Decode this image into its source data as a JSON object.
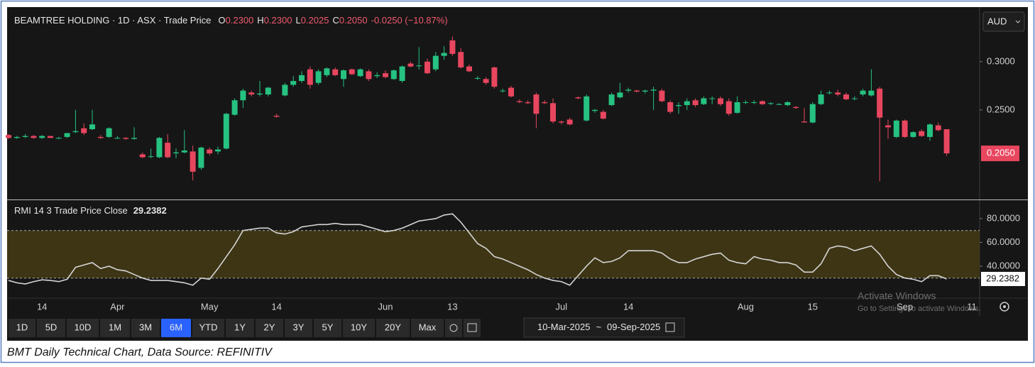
{
  "chart_data": [
    {
      "type": "candlestick",
      "legend": {
        "name": "BEAMTREE HOLDING · 1D · ASX · Trade Price",
        "open_label": "O",
        "open": "0.2300",
        "high_label": "H",
        "high": "0.2300",
        "low_label": "L",
        "low": "0.2025",
        "close_label": "C",
        "close": "0.2050",
        "change": "-0.0250 (−10.87%)"
      },
      "last_label": "0.2050",
      "up_color": "#26c281",
      "down_color": "#e8465f",
      "ylim": [
        0.158,
        0.355
      ],
      "yticks": [
        {
          "value": 0.25,
          "label": "0.2500"
        },
        {
          "value": 0.3,
          "label": "0.3000"
        }
      ],
      "categories": [
        null,
        null,
        null,
        null,
        "14",
        null,
        null,
        null,
        null,
        null,
        null,
        null,
        null,
        "Apr",
        null,
        null,
        null,
        null,
        null,
        null,
        null,
        null,
        null,
        null,
        "May",
        null,
        null,
        null,
        null,
        null,
        null,
        null,
        "14",
        null,
        null,
        null,
        null,
        null,
        null,
        null,
        null,
        null,
        null,
        null,
        null,
        "Jun",
        null,
        null,
        null,
        null,
        null,
        null,
        null,
        "13",
        null,
        null,
        null,
        null,
        null,
        null,
        null,
        null,
        null,
        null,
        null,
        null,
        "Jul",
        null,
        null,
        null,
        null,
        null,
        null,
        null,
        "14",
        null,
        null,
        null,
        null,
        null,
        null,
        null,
        null,
        null,
        null,
        null,
        null,
        null,
        "Aug",
        null,
        null,
        null,
        null,
        null,
        null,
        null,
        "15",
        null,
        null,
        null,
        null,
        null,
        null,
        null,
        null,
        null,
        null,
        "Sep",
        null,
        null,
        null,
        null,
        null,
        null,
        null,
        "11"
      ],
      "ohlc": [
        [
          0.224,
          0.225,
          0.22,
          0.221
        ],
        [
          0.221,
          0.223,
          0.22,
          0.222
        ],
        [
          0.222,
          0.225,
          0.221,
          0.223
        ],
        [
          0.223,
          0.224,
          0.22,
          0.221
        ],
        [
          0.221,
          0.224,
          0.22,
          0.223
        ],
        [
          0.223,
          0.223,
          0.221,
          0.221
        ],
        [
          0.221,
          0.222,
          0.22,
          0.221
        ],
        [
          0.222,
          0.226,
          0.221,
          0.226
        ],
        [
          0.227,
          0.25,
          0.226,
          0.228
        ],
        [
          0.231,
          0.236,
          0.224,
          0.226
        ],
        [
          0.23,
          0.25,
          0.229,
          0.235
        ],
        [
          0.222,
          0.224,
          0.22,
          0.221
        ],
        [
          0.222,
          0.232,
          0.221,
          0.231
        ],
        [
          0.221,
          0.223,
          0.22,
          0.221
        ],
        [
          0.221,
          0.222,
          0.219,
          0.22
        ],
        [
          0.22,
          0.232,
          0.219,
          0.221
        ],
        [
          0.204,
          0.206,
          0.2,
          0.201
        ],
        [
          0.202,
          0.21,
          0.2,
          0.202
        ],
        [
          0.201,
          0.222,
          0.2,
          0.221
        ],
        [
          0.216,
          0.225,
          0.2,
          0.201
        ],
        [
          0.205,
          0.21,
          0.2,
          0.206
        ],
        [
          0.206,
          0.229,
          0.205,
          0.208
        ],
        [
          0.207,
          0.213,
          0.177,
          0.186
        ],
        [
          0.19,
          0.212,
          0.188,
          0.211
        ],
        [
          0.209,
          0.211,
          0.203,
          0.205
        ],
        [
          0.207,
          0.212,
          0.204,
          0.209
        ],
        [
          0.21,
          0.247,
          0.209,
          0.246
        ],
        [
          0.245,
          0.262,
          0.244,
          0.26
        ],
        [
          0.26,
          0.272,
          0.252,
          0.27
        ],
        [
          0.268,
          0.27,
          0.264,
          0.266
        ],
        [
          0.266,
          0.28,
          0.264,
          0.267
        ],
        [
          0.266,
          0.274,
          0.264,
          0.273
        ],
        [
          0.244,
          0.246,
          0.242,
          0.243
        ],
        [
          0.265,
          0.278,
          0.264,
          0.276
        ],
        [
          0.276,
          0.285,
          0.274,
          0.28
        ],
        [
          0.28,
          0.29,
          0.278,
          0.286
        ],
        [
          0.292,
          0.295,
          0.272,
          0.276
        ],
        [
          0.278,
          0.292,
          0.276,
          0.29
        ],
        [
          0.286,
          0.294,
          0.284,
          0.293
        ],
        [
          0.292,
          0.294,
          0.285,
          0.286
        ],
        [
          0.282,
          0.292,
          0.274,
          0.291
        ],
        [
          0.292,
          0.293,
          0.286,
          0.287
        ],
        [
          0.285,
          0.293,
          0.284,
          0.292
        ],
        [
          0.29,
          0.292,
          0.28,
          0.282
        ],
        [
          0.285,
          0.289,
          0.283,
          0.286
        ],
        [
          0.288,
          0.291,
          0.283,
          0.284
        ],
        [
          0.282,
          0.292,
          0.281,
          0.291
        ],
        [
          0.28,
          0.296,
          0.278,
          0.295
        ],
        [
          0.298,
          0.3,
          0.294,
          0.295
        ],
        [
          0.296,
          0.315,
          0.292,
          0.296
        ],
        [
          0.3,
          0.303,
          0.287,
          0.288
        ],
        [
          0.292,
          0.31,
          0.29,
          0.306
        ],
        [
          0.306,
          0.316,
          0.302,
          0.309
        ],
        [
          0.322,
          0.326,
          0.306,
          0.308
        ],
        [
          0.31,
          0.314,
          0.293,
          0.294
        ],
        [
          0.295,
          0.297,
          0.289,
          0.29
        ],
        [
          0.283,
          0.285,
          0.281,
          0.283
        ],
        [
          0.282,
          0.284,
          0.276,
          0.278
        ],
        [
          0.294,
          0.295,
          0.272,
          0.274
        ],
        [
          0.27,
          0.272,
          0.268,
          0.27
        ],
        [
          0.273,
          0.275,
          0.263,
          0.264
        ],
        [
          0.259,
          0.261,
          0.257,
          0.258
        ],
        [
          0.258,
          0.26,
          0.256,
          0.257
        ],
        [
          0.266,
          0.268,
          0.231,
          0.246
        ],
        [
          0.258,
          0.26,
          0.256,
          0.257
        ],
        [
          0.257,
          0.262,
          0.236,
          0.238
        ],
        [
          0.238,
          0.239,
          0.235,
          0.237
        ],
        [
          0.24,
          0.242,
          0.234,
          0.235
        ],
        [
          0.263,
          0.264,
          0.261,
          0.262
        ],
        [
          0.239,
          0.266,
          0.238,
          0.264
        ],
        [
          0.249,
          0.251,
          0.247,
          0.25
        ],
        [
          0.248,
          0.25,
          0.24,
          0.241
        ],
        [
          0.255,
          0.268,
          0.254,
          0.266
        ],
        [
          0.263,
          0.278,
          0.262,
          0.268
        ],
        [
          0.27,
          0.273,
          0.268,
          0.271
        ],
        [
          0.27,
          0.271,
          0.268,
          0.269
        ],
        [
          0.269,
          0.271,
          0.267,
          0.27
        ],
        [
          0.27,
          0.274,
          0.25,
          0.271
        ],
        [
          0.27,
          0.272,
          0.258,
          0.259
        ],
        [
          0.258,
          0.26,
          0.246,
          0.248
        ],
        [
          0.254,
          0.258,
          0.246,
          0.255
        ],
        [
          0.255,
          0.262,
          0.25,
          0.259
        ],
        [
          0.26,
          0.262,
          0.253,
          0.255
        ],
        [
          0.256,
          0.264,
          0.255,
          0.262
        ],
        [
          0.262,
          0.264,
          0.256,
          0.262
        ],
        [
          0.262,
          0.264,
          0.254,
          0.256
        ],
        [
          0.259,
          0.262,
          0.244,
          0.246
        ],
        [
          0.247,
          0.264,
          0.246,
          0.258
        ],
        [
          0.258,
          0.26,
          0.256,
          0.258
        ],
        [
          0.258,
          0.26,
          0.256,
          0.258
        ],
        [
          0.259,
          0.26,
          0.255,
          0.256
        ],
        [
          0.257,
          0.258,
          0.255,
          0.257
        ],
        [
          0.256,
          0.257,
          0.255,
          0.256
        ],
        [
          0.255,
          0.259,
          0.254,
          0.258
        ],
        [
          0.253,
          0.254,
          0.251,
          0.252
        ],
        [
          0.238,
          0.252,
          0.237,
          0.237
        ],
        [
          0.237,
          0.258,
          0.236,
          0.256
        ],
        [
          0.256,
          0.27,
          0.255,
          0.266
        ],
        [
          0.268,
          0.27,
          0.266,
          0.268
        ],
        [
          0.268,
          0.271,
          0.264,
          0.266
        ],
        [
          0.266,
          0.268,
          0.26,
          0.261
        ],
        [
          0.262,
          0.264,
          0.26,
          0.262
        ],
        [
          0.266,
          0.272,
          0.264,
          0.27
        ],
        [
          0.265,
          0.292,
          0.264,
          0.27
        ],
        [
          0.272,
          0.274,
          0.176,
          0.242
        ],
        [
          0.234,
          0.24,
          0.22,
          0.232
        ],
        [
          0.222,
          0.24,
          0.221,
          0.239
        ],
        [
          0.239,
          0.24,
          0.221,
          0.222
        ],
        [
          0.222,
          0.228,
          0.221,
          0.227
        ],
        [
          0.228,
          0.23,
          0.222,
          0.223
        ],
        [
          0.222,
          0.236,
          0.218,
          0.235
        ],
        [
          0.234,
          0.237,
          0.228,
          0.229
        ],
        [
          0.23,
          0.23,
          0.2025,
          0.205
        ],
        null,
        null
      ]
    },
    {
      "type": "line",
      "legend": {
        "name": "RMI 14 3 Trade Price Close",
        "value": "29.2382"
      },
      "last_label": "29.2382",
      "color": "#d4d4d4",
      "band": [
        30,
        70
      ],
      "band_color": "#3d3514",
      "ylim": [
        14.3,
        94.3
      ],
      "yticks": [
        {
          "value": 40,
          "label": "40.0000"
        },
        {
          "value": 60,
          "label": "60.0000"
        },
        {
          "value": 80,
          "label": "80.0000"
        }
      ],
      "values": [
        28,
        26,
        25,
        27,
        28.5,
        28,
        27,
        29,
        39,
        41,
        43,
        38,
        40,
        37,
        36,
        33,
        30,
        28,
        28,
        28,
        27,
        26,
        24,
        30,
        29,
        38,
        48,
        58,
        70,
        71,
        72,
        72,
        68,
        67,
        69,
        73,
        74,
        75,
        75,
        76,
        75,
        75,
        75,
        73,
        71,
        69,
        70,
        72,
        75,
        78,
        79,
        80,
        83,
        84,
        77,
        68,
        59,
        55,
        48,
        46,
        43,
        40,
        37,
        33,
        30,
        28,
        27,
        24,
        32,
        40,
        47,
        43,
        44,
        47,
        53,
        53,
        53,
        53,
        51,
        46,
        43,
        43,
        46,
        48,
        50,
        51,
        45,
        43,
        42,
        48,
        46,
        45,
        43,
        43,
        41,
        35,
        35,
        42,
        55,
        57,
        56,
        53,
        55,
        57,
        50,
        40,
        33,
        30,
        29,
        27,
        32,
        32,
        29.2382,
        null,
        null
      ]
    }
  ],
  "currency": "AUD",
  "toolbar": {
    "periods": [
      "1D",
      "5D",
      "10D",
      "1M",
      "3M",
      "6M",
      "YTD",
      "1Y",
      "2Y",
      "3Y",
      "5Y",
      "10Y",
      "20Y",
      "Max"
    ],
    "active": "6M",
    "range_from": "10-Mar-2025",
    "range_sep": "~",
    "range_to": "09-Sep-2025"
  },
  "watermark": {
    "title": "Activate Windows",
    "text": "Go to Settings to activate Windows."
  },
  "caption": "BMT Daily Technical Chart, Data Source: REFINITIV"
}
